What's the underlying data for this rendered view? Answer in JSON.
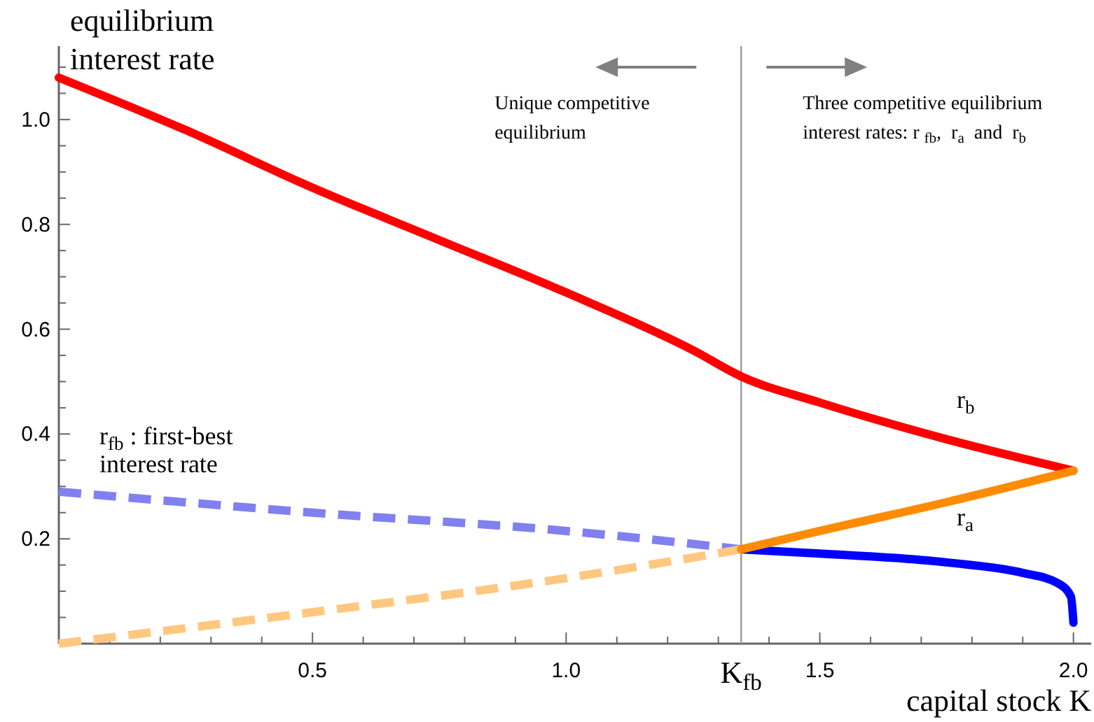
{
  "chart_data": {
    "type": "line",
    "xlabel": "capital stock K",
    "ylabel": "equilibrium\ninterest rate",
    "xlim": [
      0,
      2.035
    ],
    "ylim": [
      0,
      1.14
    ],
    "xticks": [
      {
        "value": 0.1,
        "label": null
      },
      {
        "value": 0.2,
        "label": null
      },
      {
        "value": 0.3,
        "label": null
      },
      {
        "value": 0.4,
        "label": null
      },
      0.5,
      {
        "value": 0.6,
        "label": null
      },
      {
        "value": 0.7,
        "label": null
      },
      {
        "value": 0.8,
        "label": null
      },
      {
        "value": 0.9,
        "label": null
      },
      {
        "value": 1,
        "label": "1.0"
      },
      {
        "value": 1.1,
        "label": null
      },
      {
        "value": 1.2,
        "label": null
      },
      {
        "value": 1.3,
        "label": null
      },
      {
        "value": 1.4,
        "label": null
      },
      1.5,
      {
        "value": 1.6,
        "label": null
      },
      {
        "value": 1.7,
        "label": null
      },
      {
        "value": 1.8,
        "label": null
      },
      {
        "value": 1.9,
        "label": null
      },
      {
        "value": 2,
        "label": "2.0"
      }
    ],
    "yticks": [
      {
        "value": 0.05,
        "label": null
      },
      {
        "value": 0.1,
        "label": null
      },
      {
        "value": 0.15,
        "label": null
      },
      0.2,
      {
        "value": 0.25,
        "label": null
      },
      {
        "value": 0.3,
        "label": null
      },
      {
        "value": 0.35,
        "label": null
      },
      0.4,
      {
        "value": 0.45,
        "label": null
      },
      {
        "value": 0.5,
        "label": null
      },
      {
        "value": 0.55,
        "label": null
      },
      0.6,
      {
        "value": 0.65,
        "label": null
      },
      {
        "value": 0.7,
        "label": null
      },
      {
        "value": 0.75,
        "label": null
      },
      0.8,
      {
        "value": 0.85,
        "label": null
      },
      {
        "value": 0.9,
        "label": null
      },
      {
        "value": 0.95,
        "label": null
      },
      {
        "value": 1,
        "label": "1.0"
      },
      {
        "value": 1.05,
        "label": null
      },
      {
        "value": 1.1,
        "label": null
      }
    ],
    "grid": false,
    "marker": "none",
    "ref_lines": [
      {
        "axis": "x",
        "value": 1.345,
        "label": "K$_{fb}$",
        "color": "#999999"
      }
    ],
    "annotations": [
      "Unique competitive\nequilibrium",
      "Three competitive equilibrium\ninterest rates: r $_{fb}$,  r$_{a}$  and  r$_{b}$"
    ],
    "series": [
      {
        "name": "r$_{b}$",
        "color": "#ff0000",
        "line_style": "solid",
        "x": [
          0,
          0.25,
          0.5,
          0.75,
          1.0,
          1.25,
          1.345,
          1.5,
          1.75,
          2.0
        ],
        "values": [
          1.08,
          0.98,
          0.87,
          0.77,
          0.67,
          0.56,
          0.51,
          0.46,
          0.39,
          0.33
        ]
      },
      {
        "name": "r$_{fb}$ : first-best\ninterest rate",
        "color": "#8080f0",
        "line_style": "dashed",
        "x": [
          0,
          0.5,
          1.0,
          1.345
        ],
        "values": [
          0.29,
          0.25,
          0.215,
          0.18
        ]
      },
      {
        "color": "#0000ff",
        "line_style": "solid",
        "x": [
          1.345,
          1.5,
          1.75,
          1.9,
          1.97,
          1.995,
          2.0
        ],
        "values": [
          0.18,
          0.172,
          0.155,
          0.135,
          0.115,
          0.09,
          0.04
        ]
      },
      {
        "color": "#ffc77f",
        "line_style": "dashed",
        "x": [
          0,
          0.5,
          1.0,
          1.345
        ],
        "values": [
          0,
          0.06,
          0.125,
          0.18
        ]
      },
      {
        "name": "r$_{a}$",
        "color": "#ff8c00",
        "line_style": "solid",
        "x": [
          1.345,
          1.5,
          1.75,
          2.0
        ],
        "values": [
          0.18,
          0.215,
          0.27,
          0.33
        ]
      }
    ]
  }
}
